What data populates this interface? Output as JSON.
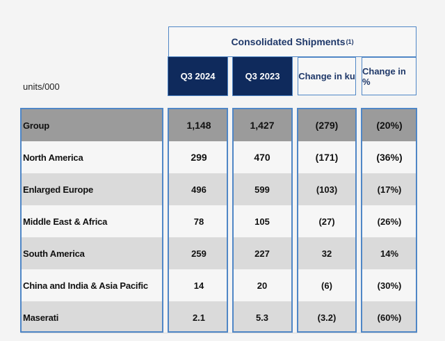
{
  "header": {
    "title": "Consolidated Shipments",
    "title_note": "(1)",
    "units": "units/000",
    "columns": [
      "Q3 2024",
      "Q3 2023",
      "Change in ku",
      "Change in %"
    ]
  },
  "rows": [
    {
      "label": "Group",
      "values": [
        "1,148",
        "1,427",
        "(279)",
        "(20%)"
      ]
    },
    {
      "label": "North America",
      "values": [
        "299",
        "470",
        "(171)",
        "(36%)"
      ]
    },
    {
      "label": "Enlarged Europe",
      "values": [
        "496",
        "599",
        "(103)",
        "(17%)"
      ]
    },
    {
      "label": "Middle East & Africa",
      "values": [
        "78",
        "105",
        "(27)",
        "(26%)"
      ]
    },
    {
      "label": "South America",
      "values": [
        "259",
        "227",
        "32",
        "14%"
      ]
    },
    {
      "label": "China and India & Asia Pacific",
      "values": [
        "14",
        "20",
        "(6)",
        "(30%)"
      ]
    },
    {
      "label": "Maserati",
      "values": [
        "2.1",
        "5.3",
        "(3.2)",
        "(60%)"
      ]
    }
  ],
  "colors": {
    "header_dark": "#0f2a5c",
    "border_blue": "#4f86c6",
    "group_row": "#9b9b9b"
  }
}
